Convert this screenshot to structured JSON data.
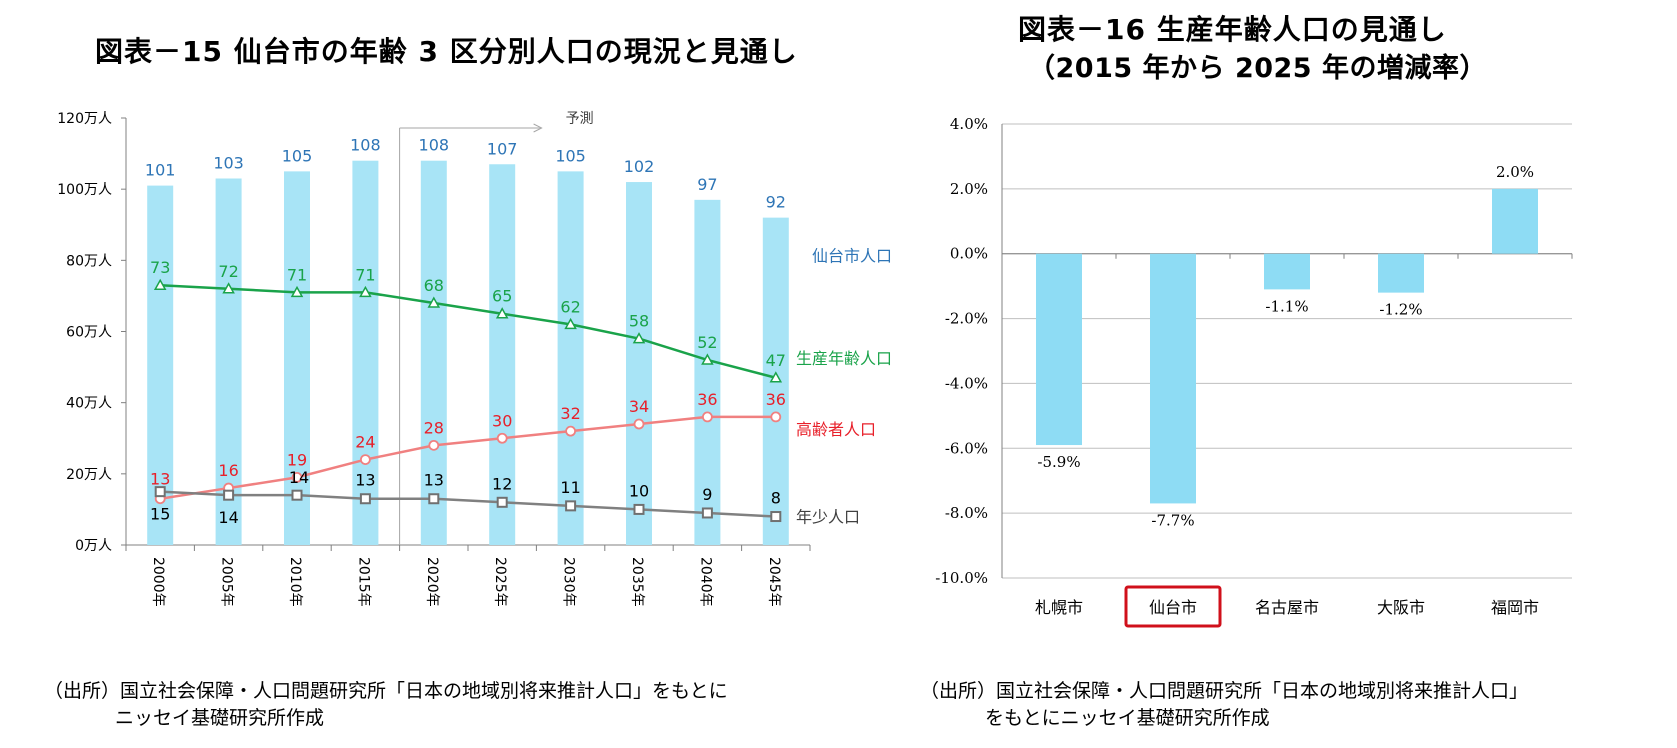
{
  "left_figure": {
    "title": "図表－15  仙台市の年齢 3 区分別人口の現況と見通し",
    "source_line1": "（出所）国立社会保障・人口問題研究所「日本の地域別将来推計人口」をもとに",
    "source_line2": "ニッセイ基礎研究所作成"
  },
  "right_figure": {
    "title_line1": "図表－16  生産年齢人口の見通し",
    "title_line2": "（2015 年から 2025 年の増減率）",
    "source_line1": "（出所）国立社会保障・人口問題研究所「日本の地域別将来推計人口」",
    "source_line2": "をもとにニッセイ基礎研究所作成"
  },
  "chart_data": [
    {
      "type": "bar",
      "categories": [
        "2000年",
        "2005年",
        "2010年",
        "2015年",
        "2020年",
        "2025年",
        "2030年",
        "2035年",
        "2040年",
        "2045年"
      ],
      "y_ticks": [
        "0万人",
        "20万人",
        "40万人",
        "60万人",
        "80万人",
        "100万人",
        "120万人"
      ],
      "ylim": [
        0,
        120
      ],
      "forecast_label": "予測",
      "forecast_from": "2020年",
      "series": [
        {
          "name": "仙台市人口",
          "kind": "bar",
          "color": "#a8e4f6",
          "label_color": "#2e75b6",
          "values": [
            101,
            103,
            105,
            108,
            108,
            107,
            105,
            102,
            97,
            92
          ]
        },
        {
          "name": "生産年齢人口",
          "kind": "line",
          "color": "#1aa34a",
          "label_color": "#1aa34a",
          "marker": "triangle",
          "values": [
            73,
            72,
            71,
            71,
            68,
            65,
            62,
            58,
            52,
            47
          ]
        },
        {
          "name": "高齢者人口",
          "kind": "line",
          "color": "#f08080",
          "label_color": "#e8202a",
          "marker": "circle",
          "values": [
            13,
            16,
            19,
            24,
            28,
            30,
            32,
            34,
            36,
            36
          ]
        },
        {
          "name": "年少人口",
          "kind": "line",
          "color": "#808080",
          "label_color": "#000000",
          "marker": "square",
          "values": [
            15,
            14,
            14,
            13,
            13,
            12,
            11,
            10,
            9,
            8
          ]
        }
      ]
    },
    {
      "type": "bar",
      "categories": [
        "札幌市",
        "仙台市",
        "名古屋市",
        "大阪市",
        "福岡市"
      ],
      "values": [
        -5.9,
        -7.7,
        -1.1,
        -1.2,
        2.0
      ],
      "value_labels": [
        "-5.9%",
        "-7.7%",
        "-1.1%",
        "-1.2%",
        "2.0%"
      ],
      "y_ticks": [
        "-10.0%",
        "-8.0%",
        "-6.0%",
        "-4.0%",
        "-2.0%",
        "0.0%",
        "2.0%",
        "4.0%"
      ],
      "ylim": [
        -10,
        4
      ],
      "grid": true,
      "bar_color": "#8edcf4",
      "highlight_category": "仙台市",
      "highlight_color": "#d0101b"
    }
  ]
}
